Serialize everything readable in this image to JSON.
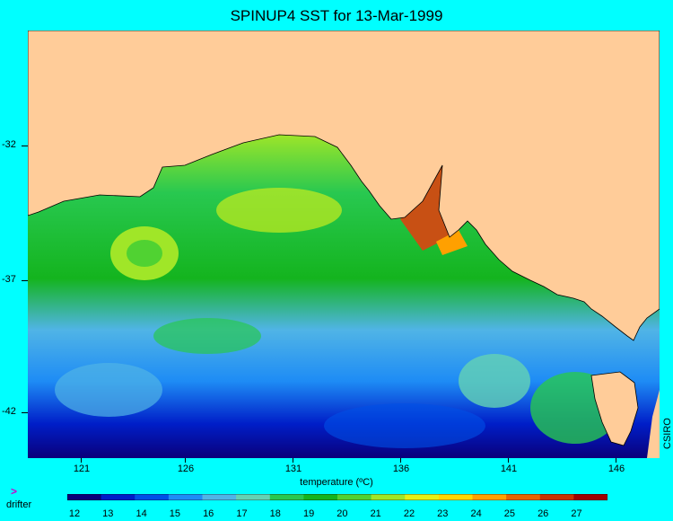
{
  "title": "SPINUP4 SST for 13-Mar-1999",
  "y_axis": {
    "ticks": [
      "-32",
      "-37",
      "-42"
    ]
  },
  "x_axis": {
    "ticks": [
      "121",
      "126",
      "131",
      "136",
      "141",
      "146"
    ]
  },
  "colorbar": {
    "label": "temperature (ºC)",
    "ticks": [
      "12",
      "13",
      "14",
      "15",
      "16",
      "17",
      "18",
      "19",
      "20",
      "21",
      "22",
      "23",
      "24",
      "25",
      "26",
      "27"
    ],
    "colors": [
      "#0a007a",
      "#001ec8",
      "#0050e6",
      "#1e8cf5",
      "#50b4e6",
      "#64d2b4",
      "#28c850",
      "#14b41e",
      "#50d232",
      "#a0e628",
      "#e6f014",
      "#ffd700",
      "#ffa000",
      "#e66400",
      "#c83200",
      "#a00000"
    ]
  },
  "legend": {
    "symbol": ">",
    "label": "drifter"
  },
  "credit": "CSIRO",
  "colors": {
    "land": "#ffcc99",
    "background": "#00ffff"
  }
}
